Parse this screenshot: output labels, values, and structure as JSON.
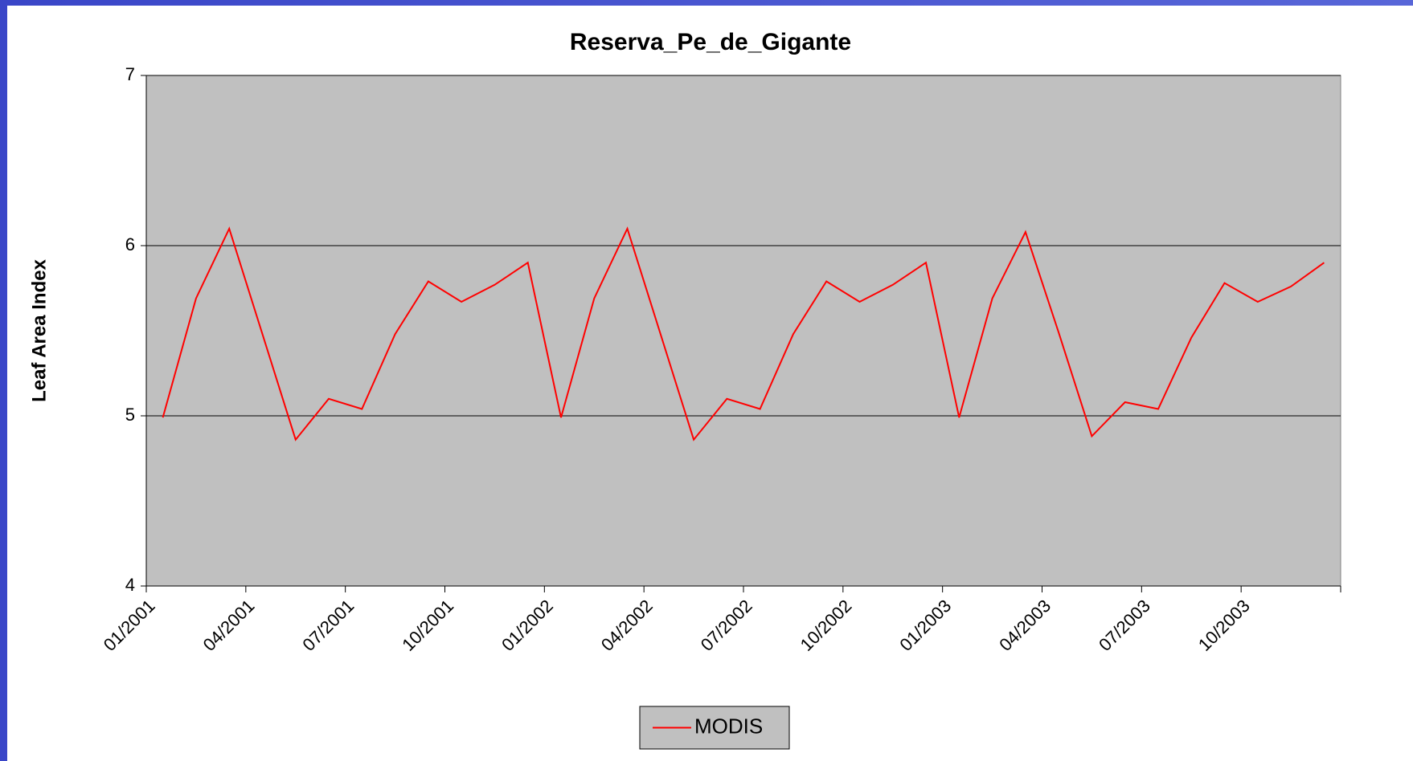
{
  "chart_data": {
    "type": "line",
    "title": "Reserva_Pe_de_Gigante",
    "y_label": "Leaf Area Index",
    "categories": [
      "01/2001",
      null,
      null,
      "04/2001",
      null,
      null,
      "07/2001",
      null,
      null,
      "10/2001",
      null,
      null,
      "01/2002",
      null,
      null,
      "04/2002",
      null,
      null,
      "07/2002",
      null,
      null,
      "10/2002",
      null,
      null,
      "01/2003",
      null,
      null,
      "04/2003",
      null,
      null,
      "07/2003",
      null,
      null,
      "10/2003",
      null,
      null
    ],
    "series": [
      {
        "name": "MODIS",
        "color": "#ff0000",
        "values": [
          4.99,
          5.69,
          6.1,
          5.48,
          4.86,
          5.1,
          5.04,
          5.48,
          5.79,
          5.67,
          5.77,
          5.9,
          4.99,
          5.69,
          6.1,
          5.48,
          4.86,
          5.1,
          5.04,
          5.48,
          5.79,
          5.67,
          5.77,
          5.9,
          4.99,
          5.69,
          6.08,
          5.49,
          4.88,
          5.08,
          5.04,
          5.46,
          5.78,
          5.67,
          5.76,
          5.9
        ]
      }
    ],
    "ylim": [
      4,
      7
    ],
    "yticks": [
      4,
      5,
      6,
      7
    ],
    "grid": true,
    "legend": "bottom",
    "plot_background": "#c0c0c0"
  }
}
